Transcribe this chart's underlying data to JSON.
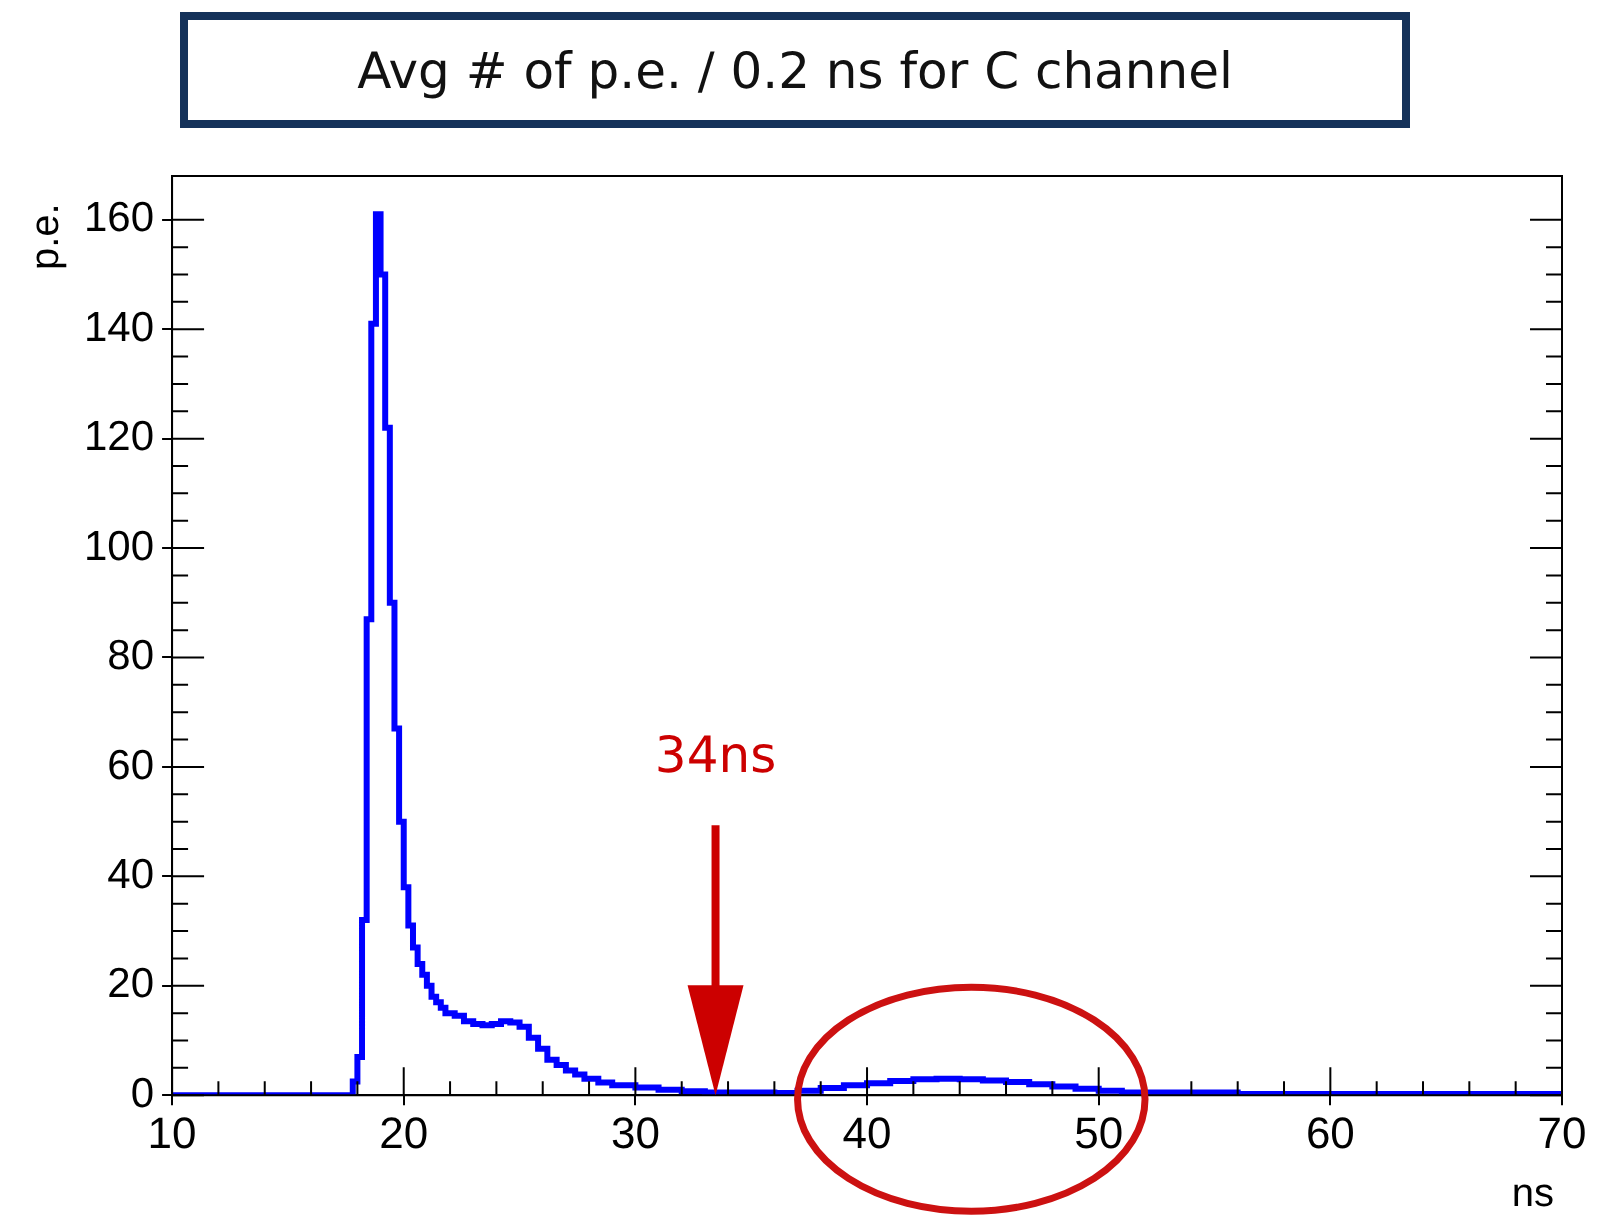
{
  "chart_data": {
    "type": "histogram",
    "title": "Avg # of p.e. / 0.2 ns for C channel",
    "xlabel": "ns",
    "ylabel": "p.e.",
    "bins": [
      10,
      17.8,
      18.0,
      18.2,
      18.4,
      18.6,
      18.8,
      19.0,
      19.2,
      19.4,
      19.6,
      19.8,
      20.0,
      20.2,
      20.4,
      20.6,
      20.8,
      21.0,
      21.2,
      21.4,
      21.6,
      21.8,
      22.2,
      22.6,
      23.0,
      23.4,
      23.8,
      24.2,
      24.6,
      25.0,
      25.4,
      25.8,
      26.2,
      26.6,
      27.0,
      27.4,
      27.8,
      28.4,
      29.0,
      30.0,
      31.0,
      32.0,
      33.0,
      36.0,
      37.0,
      38.0,
      39.0,
      40.0,
      41.0,
      42.0,
      43.0,
      44.0,
      45.0,
      46.0,
      47.0,
      48.0,
      49.0,
      50.0,
      51.0,
      56.0,
      70
    ],
    "values": [
      0,
      2.5,
      7,
      32,
      87,
      141,
      161,
      150,
      122,
      90,
      67,
      50,
      38,
      31,
      27,
      24,
      22,
      20,
      18,
      17,
      16,
      15,
      14.5,
      13.5,
      13,
      12.8,
      13,
      13.5,
      13.3,
      12.5,
      10.5,
      8.5,
      6.5,
      5.5,
      4.5,
      3.8,
      3,
      2.3,
      1.8,
      1.4,
      1.0,
      0.7,
      0.5,
      0.4,
      0.8,
      1.3,
      1.8,
      2.2,
      2.6,
      2.9,
      3.0,
      2.9,
      2.7,
      2.4,
      2.0,
      1.6,
      1.2,
      0.8,
      0.5,
      0.2
    ],
    "color": "#0000ff",
    "xlim": [
      10,
      70
    ],
    "ylim": [
      0,
      168
    ],
    "xticks": [
      10,
      20,
      30,
      40,
      50,
      60,
      70
    ],
    "yticks": [
      0,
      20,
      40,
      60,
      80,
      100,
      120,
      140,
      160
    ],
    "grid": false,
    "annotations": [
      "34ns"
    ]
  }
}
